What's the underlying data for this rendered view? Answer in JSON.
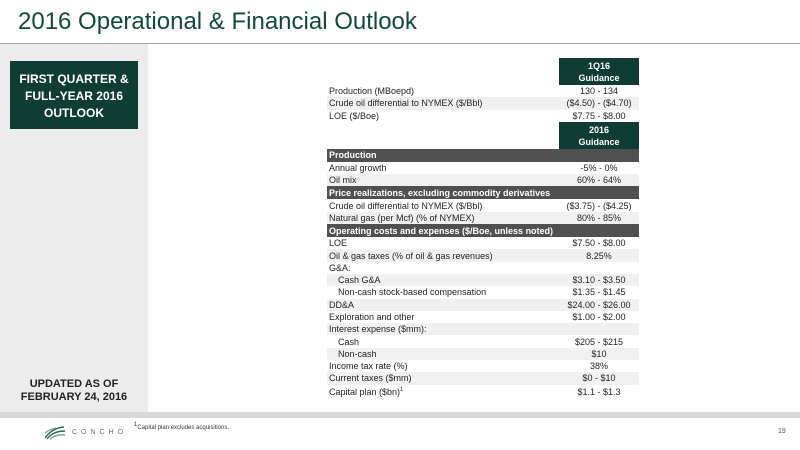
{
  "title": "2016 Operational & Financial Outlook",
  "side": {
    "box_line1": "FIRST QUARTER &",
    "box_line2": "FULL-YEAR 2016",
    "box_line3": "OUTLOOK",
    "updated_line1": "UPDATED AS OF",
    "updated_line2": "FEBRUARY 24, 2016"
  },
  "q1": {
    "header_line1": "1Q16",
    "header_line2": "Guidance",
    "rows": [
      {
        "label": "Production (MBoepd)",
        "value": "130  -  134"
      },
      {
        "label": "Crude oil differential to NYMEX ($/Bbl)",
        "value": "($4.50)  -  ($4.70)"
      },
      {
        "label": "LOE ($/Boe)",
        "value": "$7.75  -  $8.00"
      }
    ]
  },
  "fy": {
    "header_line1": "2016",
    "header_line2": "Guidance",
    "sections": {
      "production": "Production",
      "price": "Price realizations, excluding commodity derivatives",
      "opcost": "Operating costs and expenses ($/Boe, unless noted)"
    },
    "production_rows": [
      {
        "label": "Annual growth",
        "value": "-5%  -  0%"
      },
      {
        "label": "Oil mix",
        "value": "60%  -  64%"
      }
    ],
    "price_rows": [
      {
        "label": "Crude oil differential to NYMEX ($/Bbl)",
        "value": "($3.75)  -  ($4.25)"
      },
      {
        "label": "Natural gas (per Mcf) (% of NYMEX)",
        "value": "80%  -  85%"
      }
    ],
    "op_rows": [
      {
        "label": "LOE",
        "value": "$7.50  -  $8.00"
      },
      {
        "label": "Oil & gas taxes (% of oil & gas revenues)",
        "value": "8.25%"
      },
      {
        "label": "G&A:",
        "value": ""
      },
      {
        "label": "Cash G&A",
        "value": "$3.10  -  $3.50"
      },
      {
        "label": "Non-cash stock-based compensation",
        "value": "$1.35  -  $1.45"
      },
      {
        "label": "DD&A",
        "value": "$24.00  -  $26.00"
      },
      {
        "label": "Exploration and other",
        "value": "$1.00  -  $2.00"
      },
      {
        "label": "Interest expense ($mm):",
        "value": ""
      },
      {
        "label": "Cash",
        "value": "$205  -  $215"
      },
      {
        "label": "Non-cash",
        "value": "$10"
      },
      {
        "label": "Income tax rate (%)",
        "value": "38%"
      },
      {
        "label": "Current taxes ($mm)",
        "value": "$0  -  $10"
      },
      {
        "label": "Capital plan ($bn)",
        "value": "$1.1  -  $1.3"
      }
    ],
    "capital_sup": "1"
  },
  "footnote_sup": "1",
  "footnote": "Capital plan excludes acquisitions.",
  "logo_text": "CONCHO",
  "page_number": "19",
  "colors": {
    "brand_dark": "#0f3d33",
    "title": "#0f4a3c",
    "section": "#505050"
  }
}
